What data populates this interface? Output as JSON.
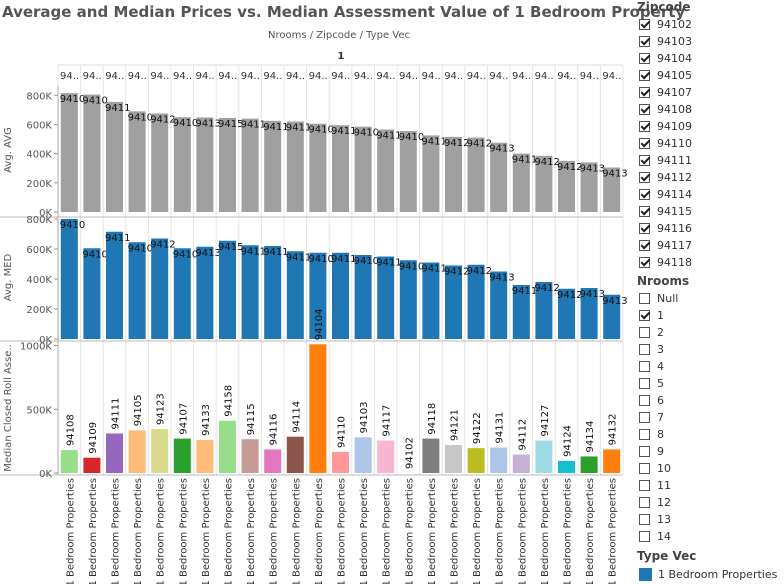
{
  "title": "Average and Median Prices vs. Median Assessment Value of 1 Bedroom Property",
  "header": {
    "breadcrumb": "Nrooms  /  Zipcode  /  Type Vec",
    "group_label": "1"
  },
  "chart_data": {
    "type": "bar",
    "categories": [
      "94108",
      "94109",
      "94111",
      "94105",
      "94123",
      "94107",
      "94133",
      "94158",
      "94115",
      "94116",
      "94114",
      "94104",
      "94110",
      "94103",
      "94117",
      "94102",
      "94118",
      "94121",
      "94122",
      "94131",
      "94112",
      "94127",
      "94124",
      "94134",
      "94132"
    ],
    "header_labels": [
      "94..",
      "94..",
      "94..",
      "94..",
      "94..",
      "94..",
      "94..",
      "94..",
      "94..",
      "94..",
      "94..",
      "94..",
      "94..",
      "94..",
      "94..",
      "94..",
      "94..",
      "94..",
      "94..",
      "94..",
      "94..",
      "94..",
      "94..",
      "94..",
      "94.."
    ],
    "type_label": "1 Bedroom Properties",
    "panels": [
      {
        "ylabel": "Avg. AVG",
        "ylim": [
          0,
          850000
        ],
        "ticks": [
          0,
          200000,
          400000,
          600000,
          800000
        ],
        "tick_labels": [
          "0K",
          "200K",
          "400K",
          "600K",
          "800K"
        ],
        "color": "#a0a0a0",
        "bar_labels": [
          "9410",
          "9410",
          "9411",
          "9410",
          "9412",
          "9410",
          "9413",
          "9415",
          "9411",
          "9411",
          "9411",
          "9410",
          "9411",
          "9410",
          "9411",
          "9410",
          "9411",
          "9412",
          "9412",
          "9413",
          "9411",
          "9412",
          "9412",
          "9413",
          "9413"
        ],
        "values": [
          815000,
          805000,
          755000,
          690000,
          675000,
          650000,
          648000,
          645000,
          640000,
          625000,
          620000,
          605000,
          595000,
          585000,
          565000,
          555000,
          525000,
          515000,
          510000,
          475000,
          400000,
          385000,
          350000,
          340000,
          305000
        ]
      },
      {
        "ylabel": "Avg. MED",
        "ylim": [
          0,
          820000
        ],
        "ticks": [
          0,
          200000,
          400000,
          600000,
          800000
        ],
        "tick_labels": [
          "0K",
          "200K",
          "400K",
          "600K",
          "800K"
        ],
        "color": "#1f77b4",
        "bar_labels": [
          "9410",
          "9410",
          "9411",
          "9410",
          "9412",
          "9410",
          "9413",
          "9415",
          "9411",
          "9411",
          "9411",
          "9410",
          "9411",
          "9410",
          "9411",
          "9410",
          "9411",
          "9412",
          "9412",
          "9413",
          "9411",
          "9412",
          "9412",
          "9413",
          "9413"
        ],
        "values": [
          800000,
          605000,
          715000,
          645000,
          670000,
          605000,
          615000,
          655000,
          625000,
          620000,
          585000,
          575000,
          575000,
          560000,
          550000,
          525000,
          510000,
          490000,
          495000,
          450000,
          360000,
          380000,
          335000,
          340000,
          295000
        ]
      },
      {
        "ylabel": "Median Closed Roll Asse..",
        "ylim": [
          0,
          1020000
        ],
        "ticks": [
          0,
          500000,
          1000000
        ],
        "tick_labels": [
          "0K",
          "500K",
          "1000K"
        ],
        "colors": [
          "#98df8a",
          "#d62728",
          "#9467bd",
          "#ffbb78",
          "#dbdb8d",
          "#2ca02c",
          "#ffbb78",
          "#98df8a",
          "#c49c94",
          "#e377c2",
          "#8c564b",
          "#ff7f0e",
          "#ff9896",
          "#aec7e8",
          "#f7b6d2",
          "#ffffff",
          "#7f7f7f",
          "#c7c7c7",
          "#bcbd22",
          "#aec7e8",
          "#c5b0d5",
          "#9edae5",
          "#17becf",
          "#2ca02c",
          "#ff7f0e"
        ],
        "values": [
          180000,
          120000,
          310000,
          335000,
          345000,
          270000,
          260000,
          410000,
          265000,
          185000,
          285000,
          1010000,
          165000,
          280000,
          255000,
          0,
          270000,
          220000,
          195000,
          200000,
          145000,
          255000,
          95000,
          130000,
          185000
        ]
      }
    ]
  },
  "legend": {
    "zipcode": {
      "title": "Zipcode",
      "items": [
        {
          "label": "94102",
          "checked": true
        },
        {
          "label": "94103",
          "checked": true
        },
        {
          "label": "94104",
          "checked": true
        },
        {
          "label": "94105",
          "checked": true
        },
        {
          "label": "94107",
          "checked": true
        },
        {
          "label": "94108",
          "checked": true
        },
        {
          "label": "94109",
          "checked": true
        },
        {
          "label": "94110",
          "checked": true
        },
        {
          "label": "94111",
          "checked": true
        },
        {
          "label": "94112",
          "checked": true
        },
        {
          "label": "94114",
          "checked": true
        },
        {
          "label": "94115",
          "checked": true
        },
        {
          "label": "94116",
          "checked": true
        },
        {
          "label": "94117",
          "checked": true
        },
        {
          "label": "94118",
          "checked": true
        }
      ]
    },
    "nrooms": {
      "title": "Nrooms",
      "items": [
        {
          "label": "Null",
          "checked": false
        },
        {
          "label": "1",
          "checked": true
        },
        {
          "label": "2",
          "checked": false
        },
        {
          "label": "3",
          "checked": false
        },
        {
          "label": "4",
          "checked": false
        },
        {
          "label": "5",
          "checked": false
        },
        {
          "label": "6",
          "checked": false
        },
        {
          "label": "7",
          "checked": false
        },
        {
          "label": "8",
          "checked": false
        },
        {
          "label": "9",
          "checked": false
        },
        {
          "label": "10",
          "checked": false
        },
        {
          "label": "11",
          "checked": false
        },
        {
          "label": "12",
          "checked": false
        },
        {
          "label": "13",
          "checked": false
        },
        {
          "label": "14",
          "checked": false
        }
      ]
    },
    "typevec": {
      "title": "Type Vec",
      "items": [
        {
          "label": "1 Bedroom Properties",
          "color": "#1f77b4"
        }
      ]
    }
  }
}
